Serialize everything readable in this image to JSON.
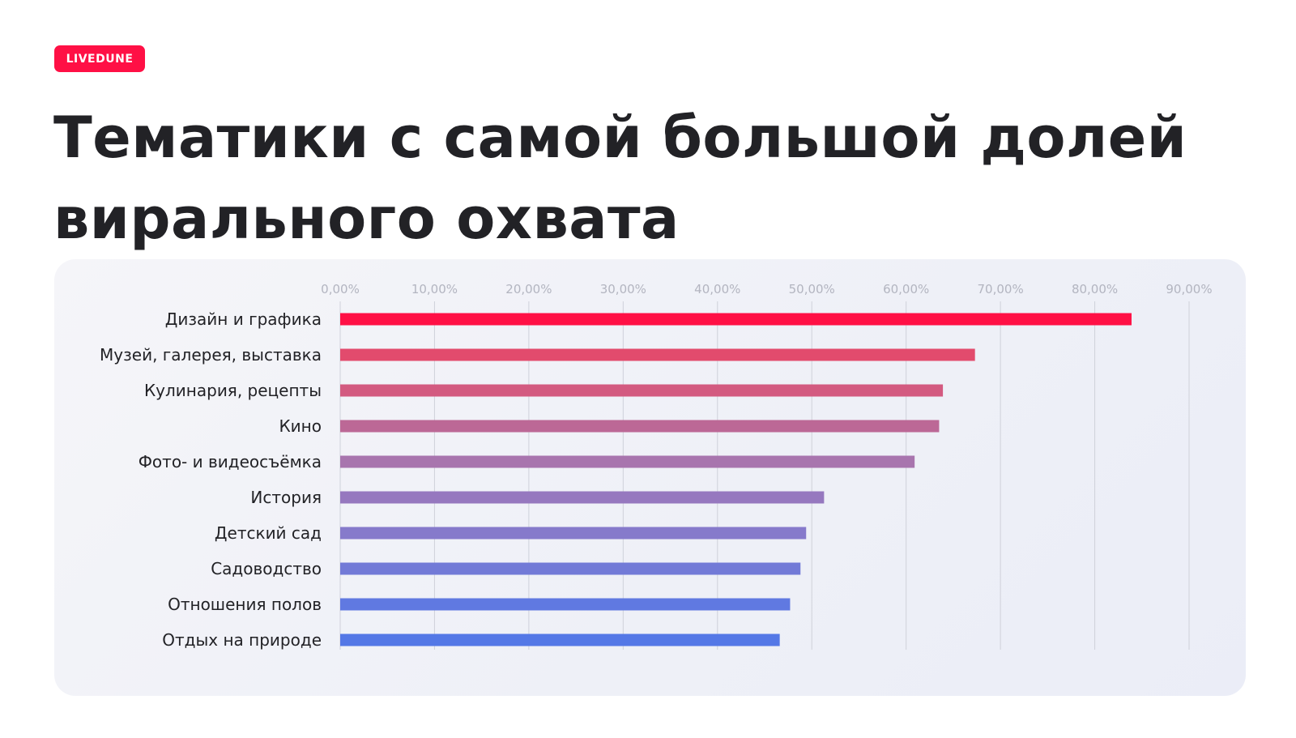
{
  "badge": {
    "label": "LIVEDUNE",
    "color": "#ff1045"
  },
  "chart_data": {
    "type": "bar",
    "orientation": "horizontal",
    "title": "Тематики с самой большой долей вирального охвата",
    "xlabel": "",
    "ylabel": "",
    "xlim": [
      0,
      90
    ],
    "tick_values": [
      0,
      10,
      20,
      30,
      40,
      50,
      60,
      70,
      80,
      90
    ],
    "tick_labels": [
      "0,00%",
      "10,00%",
      "20,00%",
      "30,00%",
      "40,00%",
      "50,00%",
      "60,00%",
      "70,00%",
      "80,00%",
      "90,00%"
    ],
    "grid": true,
    "legend": "none",
    "categories": [
      "Дизайн и графика",
      "Музей, галерея, выставка",
      "Кулинария, рецепты",
      "Кино",
      "Фото- и видеосъёмка",
      "История",
      "Детский сад",
      "Садоводство",
      "Отношения полов",
      "Отдых на природе"
    ],
    "values": [
      83.9,
      67.3,
      63.9,
      63.5,
      60.9,
      51.3,
      49.4,
      48.8,
      47.7,
      46.6
    ],
    "colors": [
      "#ff1045",
      "#e24b6d",
      "#d35a80",
      "#bc6896",
      "#a875ae",
      "#9678bf",
      "#867acb",
      "#727ad7",
      "#6079e1",
      "#5478e6"
    ]
  }
}
